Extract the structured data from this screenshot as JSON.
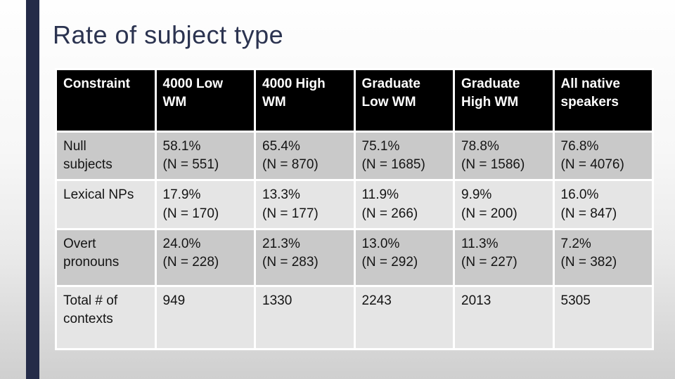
{
  "title": "Rate of subject type",
  "colors": {
    "accent_bar": "#242b48",
    "title_text": "#2b3350",
    "header_bg": "#000000",
    "header_text": "#ffffff",
    "row_dark": "#c9c9c9",
    "row_light": "#e5e5e5",
    "cell_border": "#ffffff",
    "body_text": "#141414"
  },
  "table": {
    "columns": [
      "Constraint",
      "4000 Low\nWM",
      "4000 High\nWM",
      "Graduate\nLow WM",
      "Graduate\nHigh WM",
      "All native\nspeakers"
    ],
    "rows": [
      {
        "label": "Null\nsubjects",
        "cells": [
          "58.1%\n(N = 551)",
          "65.4%\n(N = 870)",
          "75.1%\n(N = 1685)",
          "78.8%\n(N = 1586)",
          "76.8%\n(N = 4076)"
        ]
      },
      {
        "label": "Lexical NPs",
        "cells": [
          "17.9%\n(N = 170)",
          "13.3%\n(N = 177)",
          "11.9%\n(N = 266)",
          "9.9%\n(N = 200)",
          "16.0%\n(N = 847)"
        ]
      },
      {
        "label": "Overt\npronouns",
        "cells": [
          "24.0%\n(N = 228)",
          "21.3%\n(N = 283)",
          "13.0%\n(N = 292)",
          "11.3%\n(N = 227)",
          "7.2%\n(N = 382)"
        ]
      },
      {
        "label": "Total # of\ncontexts",
        "cells": [
          "949",
          "1330",
          "2243",
          "2013",
          "5305"
        ]
      }
    ]
  }
}
